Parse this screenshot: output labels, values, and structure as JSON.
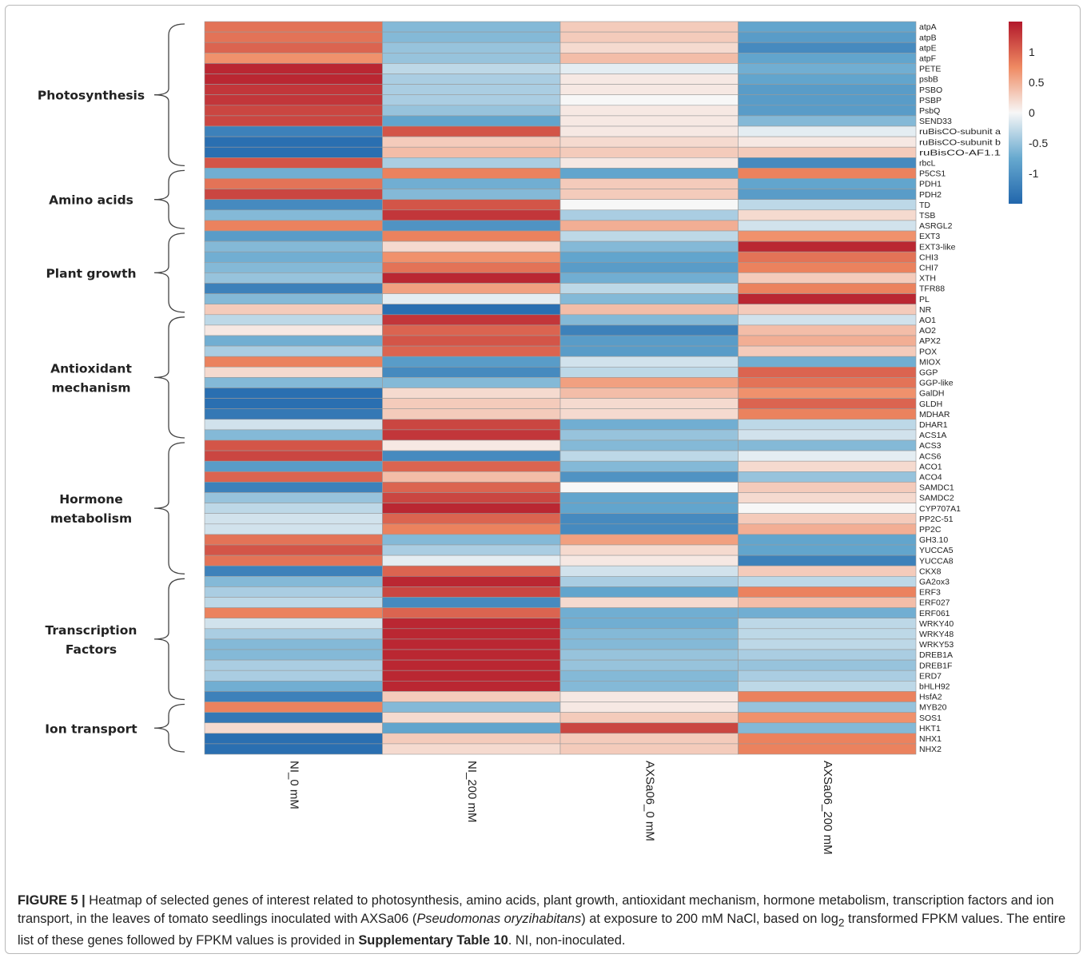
{
  "chart_data": {
    "type": "heatmap",
    "columns": [
      "NI_0 mM",
      "NI_200 mM",
      "AXSa06_0 mM",
      "AXSa06_200 mM"
    ],
    "rows": [
      "atpA",
      "atpB",
      "atpE",
      "atpF",
      "PETE",
      "psbB",
      "PSBO",
      "PSBP",
      "PsbQ",
      "SEND33",
      "ruBisCO-subunit a",
      "ruBisCO-subunit b",
      "ruBisCO-AF1.1",
      "rbcL",
      "P5CS1",
      "PDH1",
      "PDH2",
      "TD",
      "TSB",
      "ASRGL2",
      "EXT3",
      "EXT3-like",
      "CHI3",
      "CHI7",
      "XTH",
      "TFR88",
      "PL",
      "NR",
      "AO1",
      "AO2",
      "APX2",
      "POX",
      "MIOX",
      "GGP",
      "GGP-like",
      "GalDH",
      "GLDH",
      "MDHAR",
      "DHAR1",
      "ACS1A",
      "ACS3",
      "ACS6",
      "ACO1",
      "ACO4",
      "SAMDC1",
      "SAMDC2",
      "CYP707A1",
      "PP2C-51",
      "PP2C",
      "GH3.10",
      "YUCCA5",
      "YUCCA8",
      "CKX8",
      "GA2ox3",
      "ERF3",
      "ERF027",
      "ERF061",
      "WRKY40",
      "WRKY48",
      "WRKY53",
      "DREB1A",
      "DREB1F",
      "ERD7",
      "bHLH92",
      "HsfA2",
      "MYB20",
      "SOS1",
      "HKT1",
      "NHX1",
      "NHX2"
    ],
    "values": [
      [
        0.9,
        -0.6,
        0.3,
        -0.8
      ],
      [
        0.9,
        -0.6,
        0.3,
        -0.9
      ],
      [
        1.0,
        -0.5,
        0.2,
        -1.1
      ],
      [
        0.7,
        -0.5,
        0.4,
        -0.8
      ],
      [
        1.4,
        -0.3,
        -0.1,
        -0.7
      ],
      [
        1.4,
        -0.4,
        0.1,
        -0.8
      ],
      [
        1.3,
        -0.4,
        0.1,
        -0.9
      ],
      [
        1.3,
        -0.4,
        0.0,
        -0.9
      ],
      [
        1.2,
        -0.5,
        0.1,
        -0.9
      ],
      [
        1.2,
        -0.8,
        0.1,
        -0.6
      ],
      [
        -1.2,
        1.1,
        0.1,
        -0.1
      ],
      [
        -1.4,
        0.3,
        0.2,
        0.1
      ],
      [
        -1.4,
        0.4,
        0.3,
        0.3
      ],
      [
        1.1,
        -0.4,
        0.1,
        -1.1
      ],
      [
        -0.7,
        0.8,
        -0.8,
        0.8
      ],
      [
        0.9,
        -0.7,
        0.3,
        -0.8
      ],
      [
        1.2,
        -0.6,
        0.3,
        -0.9
      ],
      [
        -1.1,
        1.1,
        0.0,
        -0.3
      ],
      [
        -0.6,
        1.3,
        -0.4,
        0.2
      ],
      [
        0.8,
        -1.0,
        0.5,
        -0.2
      ],
      [
        -0.9,
        0.8,
        -0.3,
        0.7
      ],
      [
        -0.6,
        0.2,
        -0.6,
        1.4
      ],
      [
        -0.7,
        0.7,
        -0.8,
        0.9
      ],
      [
        -0.6,
        0.9,
        -0.9,
        0.8
      ],
      [
        -0.5,
        1.4,
        -0.7,
        0.3
      ],
      [
        -1.2,
        0.6,
        -0.3,
        0.8
      ],
      [
        -0.6,
        -0.1,
        -0.6,
        1.4
      ],
      [
        0.3,
        -1.4,
        0.4,
        0.3
      ],
      [
        -0.3,
        1.3,
        -0.6,
        -0.2
      ],
      [
        0.1,
        1.0,
        -1.2,
        0.4
      ],
      [
        -0.7,
        1.1,
        -0.9,
        0.5
      ],
      [
        -0.4,
        1.0,
        -0.9,
        0.3
      ],
      [
        0.8,
        -0.9,
        -0.2,
        -0.7
      ],
      [
        0.2,
        -1.1,
        -0.3,
        1.0
      ],
      [
        -0.6,
        -0.6,
        0.6,
        0.9
      ],
      [
        -1.4,
        0.2,
        0.4,
        0.7
      ],
      [
        -1.4,
        0.3,
        0.2,
        1.0
      ],
      [
        -1.3,
        0.3,
        0.2,
        0.8
      ],
      [
        -0.2,
        1.2,
        -0.7,
        -0.3
      ],
      [
        -0.6,
        1.3,
        -0.5,
        -0.2
      ],
      [
        1.1,
        0.1,
        -0.6,
        -0.6
      ],
      [
        1.2,
        -1.1,
        -0.3,
        -0.1
      ],
      [
        -0.9,
        1.0,
        -0.6,
        0.2
      ],
      [
        1.0,
        0.4,
        -1.0,
        -0.5
      ],
      [
        -1.2,
        1.0,
        0.0,
        0.3
      ],
      [
        -0.5,
        1.2,
        -0.8,
        0.2
      ],
      [
        -0.3,
        1.4,
        -0.8,
        0.0
      ],
      [
        -0.2,
        1.0,
        -1.1,
        0.3
      ],
      [
        -0.2,
        0.8,
        -1.1,
        0.5
      ],
      [
        0.9,
        -0.6,
        0.6,
        -0.8
      ],
      [
        1.1,
        -0.4,
        0.2,
        -0.8
      ],
      [
        0.9,
        -0.1,
        0.1,
        -1.2
      ],
      [
        -1.2,
        1.0,
        -0.2,
        0.3
      ],
      [
        -0.6,
        1.4,
        -0.4,
        -0.3
      ],
      [
        -0.4,
        1.2,
        -0.8,
        0.8
      ],
      [
        -0.3,
        -1.1,
        0.2,
        0.4
      ],
      [
        0.8,
        1.0,
        -0.7,
        -0.7
      ],
      [
        -0.2,
        1.4,
        -0.7,
        -0.3
      ],
      [
        -0.4,
        1.4,
        -0.6,
        -0.3
      ],
      [
        -0.6,
        1.4,
        -0.6,
        -0.3
      ],
      [
        -0.6,
        1.4,
        -0.5,
        -0.4
      ],
      [
        -0.4,
        1.4,
        -0.5,
        -0.5
      ],
      [
        -0.4,
        1.4,
        -0.6,
        -0.4
      ],
      [
        -0.7,
        1.4,
        -0.6,
        -0.3
      ],
      [
        -1.2,
        0.3,
        0.1,
        0.8
      ],
      [
        0.8,
        -0.6,
        0.1,
        -0.5
      ],
      [
        -1.3,
        0.2,
        0.3,
        0.7
      ],
      [
        0.2,
        -0.8,
        1.2,
        -0.6
      ],
      [
        -1.4,
        0.3,
        0.3,
        0.8
      ],
      [
        -1.4,
        0.2,
        0.3,
        0.8
      ]
    ],
    "groups": [
      {
        "label": "Photosynthesis",
        "start": 0,
        "end": 13
      },
      {
        "label": "Amino acids",
        "start": 14,
        "end": 19
      },
      {
        "label": "Plant growth",
        "start": 20,
        "end": 27
      },
      {
        "label": "Antioxidant mechanism",
        "start": 28,
        "end": 39
      },
      {
        "label": "Hormone metabolism",
        "start": 40,
        "end": 52
      },
      {
        "label": "Transcription Factors",
        "start": 53,
        "end": 64
      },
      {
        "label": "Ion transport",
        "start": 65,
        "end": 69
      }
    ],
    "colorbar": {
      "ticks": [
        1,
        0.5,
        0,
        -0.5,
        -1
      ],
      "tick_labels": [
        "1",
        "0.5",
        "0",
        "-0.5",
        "-1"
      ]
    },
    "colors": {
      "high": "#b2182b",
      "mid": "#f7f7f7",
      "low": "#2166ac"
    }
  },
  "caption": {
    "figure_label": "FIGURE 5 |",
    "text_1": " Heatmap of selected genes of interest related to photosynthesis, amino acids, plant growth, antioxidant mechanism, hormone metabolism, transcription factors and ion transport, in the leaves of tomato seedlings inoculated with AXSa06 (",
    "species": "Pseudomonas oryzihabitans",
    "text_2": ") at exposure to 200 mM NaCl, based on log",
    "subscript": "2",
    "text_3": " transformed FPKM values. The entire list of these genes followed by FPKM values is provided in ",
    "supplementary": "Supplementary Table 10",
    "text_4": ". NI, non-inoculated."
  }
}
